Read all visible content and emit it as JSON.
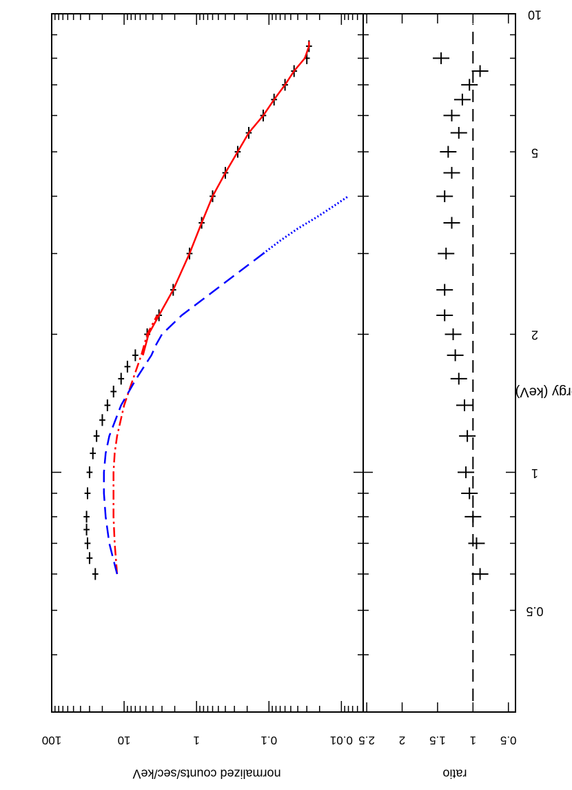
{
  "chart_data": [
    {
      "type": "line",
      "xlabel": "Energy (keV)",
      "ylabel": "normalized counts/sec/keV",
      "xscale": "log",
      "yscale": "log",
      "xlim": [
        0.3,
        10
      ],
      "ylim": [
        0.005,
        100
      ],
      "x_tick_labels": [
        {
          "value": 0.5,
          "label": "0.5"
        },
        {
          "value": 1,
          "label": "1"
        },
        {
          "value": 2,
          "label": "2"
        },
        {
          "value": 5,
          "label": "5"
        },
        {
          "value": 10,
          "label": "10"
        }
      ],
      "y_tick_labels": [
        {
          "value": 100,
          "label": "100"
        },
        {
          "value": 10,
          "label": "10"
        },
        {
          "value": 1,
          "label": "1"
        },
        {
          "value": 0.1,
          "label": "0.1"
        },
        {
          "value": 0.01,
          "label": "0.01"
        }
      ],
      "series": [
        {
          "style": "data points with error bars",
          "color": "#000000",
          "x": [
            0.6,
            0.65,
            0.7,
            0.75,
            0.8,
            0.9,
            1.0,
            1.1,
            1.2,
            1.3,
            1.4,
            1.5,
            1.6,
            1.7,
            1.8,
            2.0,
            2.2,
            2.5,
            3.0,
            3.5,
            4.0,
            4.5,
            5.0,
            5.5,
            6.0,
            6.5,
            7.0,
            7.5,
            8.0,
            8.5
          ],
          "y": [
            25,
            30,
            32,
            33,
            33,
            32,
            30,
            27,
            24,
            20,
            17,
            14,
            11,
            9,
            7,
            4.8,
            3.3,
            2.1,
            1.25,
            0.85,
            0.6,
            0.4,
            0.27,
            0.19,
            0.12,
            0.085,
            0.06,
            0.045,
            0.03,
            0.028
          ]
        },
        {
          "style": "solid",
          "color": "#ff0000",
          "x": [
            1.8,
            2.0,
            2.2,
            2.5,
            3.0,
            3.5,
            4.0,
            4.5,
            5.0,
            5.5,
            6.0,
            6.5,
            7.0,
            7.5,
            8.0,
            8.5,
            8.7
          ],
          "y": [
            5.5,
            4.6,
            3.3,
            2.1,
            1.25,
            0.85,
            0.6,
            0.4,
            0.27,
            0.19,
            0.12,
            0.085,
            0.06,
            0.045,
            0.032,
            0.028,
            0.028
          ]
        },
        {
          "style": "dash-dot",
          "color": "#ff0000",
          "x": [
            0.6,
            0.7,
            0.8,
            0.9,
            1.0,
            1.1,
            1.2,
            1.4,
            1.6,
            1.8,
            2.0,
            2.2
          ],
          "y": [
            12.5,
            13.5,
            14,
            14,
            14,
            13.5,
            12.5,
            10,
            7.5,
            5.8,
            4.8,
            3.5
          ]
        },
        {
          "style": "dashed",
          "color": "#0000ff",
          "x": [
            0.6,
            0.7,
            0.8,
            0.9,
            1.0,
            1.1,
            1.2,
            1.4,
            1.6,
            1.8,
            1.9,
            2.0,
            2.2,
            2.5,
            3.0
          ],
          "y": [
            12.5,
            16,
            18,
            19,
            19,
            18,
            16,
            11,
            6.8,
            4.2,
            3.6,
            3.0,
            1.6,
            0.55,
            0.12
          ]
        },
        {
          "style": "dotted",
          "color": "#0000ff",
          "x": [
            3.0,
            3.2,
            3.4,
            3.6,
            3.8,
            4.0
          ],
          "y": [
            0.12,
            0.07,
            0.04,
            0.022,
            0.013,
            0.008
          ]
        }
      ]
    },
    {
      "type": "line",
      "xlabel": "Energy (keV)",
      "ylabel": "ratio",
      "xscale": "log",
      "xlim": [
        0.3,
        10
      ],
      "ylim": [
        0.4,
        2.55
      ],
      "y_tick_labels": [
        {
          "value": 0.5,
          "label": "0.5"
        },
        {
          "value": 1,
          "label": "1"
        },
        {
          "value": 1.5,
          "label": "1.5"
        },
        {
          "value": 2,
          "label": "2"
        },
        {
          "value": 2.5,
          "label": "2.5"
        }
      ],
      "reference_line": {
        "value": 1,
        "style": "dashed",
        "color": "#000000"
      },
      "series": [
        {
          "style": "data points with error bars",
          "color": "#000000",
          "x": [
            0.6,
            0.7,
            0.8,
            0.9,
            1.0,
            1.2,
            1.4,
            1.6,
            1.8,
            2.0,
            2.2,
            2.5,
            3.0,
            3.5,
            4.0,
            4.5,
            5.0,
            5.5,
            6.0,
            6.5,
            7.0,
            7.5,
            8.0
          ],
          "y": [
            0.9,
            0.95,
            1.0,
            1.05,
            1.1,
            1.08,
            1.12,
            1.2,
            1.25,
            1.28,
            1.4,
            1.4,
            1.38,
            1.3,
            1.4,
            1.3,
            1.35,
            1.2,
            1.3,
            1.15,
            1.05,
            0.9,
            1.45
          ]
        }
      ]
    }
  ]
}
